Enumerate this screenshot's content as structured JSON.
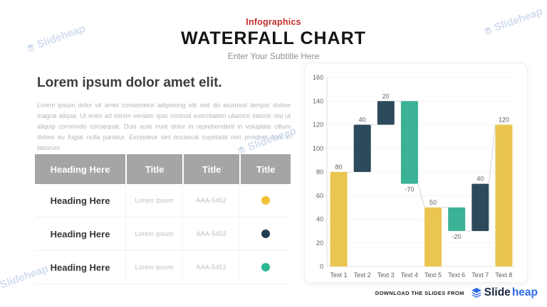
{
  "header": {
    "eyebrow": "Infographics",
    "title": "WATERFALL CHART",
    "subtitle": "Enter Your Subtitle Here"
  },
  "intro": {
    "heading": "Lorem ipsum dolor amet elit.",
    "body": "Lorem ipsum dolor sit amet consectetur adipiscing elit sed do eiusmod tempor dolore magna aliqua. Ut enim ad minim veniam quis nostrud exercitation ullamco laboris nisi ut aliquip commodo consequat. Duis aute irure dolor in reprehenderit in voluptate cillum dolore eu fugiat nulla pariatur. Excepteur sint occaecat cupidatat non proident sunt in laborum"
  },
  "table": {
    "headers": [
      "Heading Here",
      "Title",
      "Title",
      "Title"
    ],
    "rows": [
      {
        "heading": "Heading Here",
        "subtitle": "Lorem ipsum",
        "code": "AAA-5452",
        "dot_color": "#EFC233"
      },
      {
        "heading": "Heading Here",
        "subtitle": "Lorem ipsum",
        "code": "AAA-5452",
        "dot_color": "#223D50"
      },
      {
        "heading": "Heading Here",
        "subtitle": "Lorem ipsum",
        "code": "AAA-5452",
        "dot_color": "#2FB794"
      }
    ]
  },
  "chart_data": {
    "type": "bar",
    "subtype": "waterfall",
    "title": "",
    "xlabel": "",
    "ylabel": "",
    "categories": [
      "Text 1",
      "Text 2",
      "Text 3",
      "Text 4",
      "Text 5",
      "Text 6",
      "Text 7",
      "Text 8"
    ],
    "y_axis": {
      "min": 0,
      "max": 160,
      "step": 20
    },
    "grid": true,
    "legend": false,
    "bars": [
      {
        "category": "Text 1",
        "start": 0,
        "end": 80,
        "label": "80",
        "role": "total"
      },
      {
        "category": "Text 2",
        "start": 80,
        "end": 120,
        "label": "40",
        "role": "increase"
      },
      {
        "category": "Text 3",
        "start": 120,
        "end": 140,
        "label": "20",
        "role": "increase"
      },
      {
        "category": "Text 4",
        "start": 140,
        "end": 70,
        "label": "-70",
        "role": "decrease"
      },
      {
        "category": "Text 5",
        "start": 0,
        "end": 50,
        "label": "50",
        "role": "total"
      },
      {
        "category": "Text 6",
        "start": 50,
        "end": 30,
        "label": "-20",
        "role": "decrease"
      },
      {
        "category": "Text 7",
        "start": 30,
        "end": 70,
        "label": "40",
        "role": "increase"
      },
      {
        "category": "Text 8",
        "start": 0,
        "end": 120,
        "label": "120",
        "role": "total"
      }
    ],
    "connectors": [
      {
        "from": 0,
        "fromLevel": 80,
        "to": 1,
        "toLevel": 80
      },
      {
        "from": 1,
        "fromLevel": 120,
        "to": 2,
        "toLevel": 120
      },
      {
        "from": 2,
        "fromLevel": 140,
        "to": 3,
        "toLevel": 140
      },
      {
        "from": 3,
        "fromLevel": 70,
        "to": 4,
        "toLevel": 50
      },
      {
        "from": 4,
        "fromLevel": 50,
        "to": 5,
        "toLevel": 50
      },
      {
        "from": 5,
        "fromLevel": 30,
        "to": 6,
        "toLevel": 30
      },
      {
        "from": 6,
        "fromLevel": 70,
        "to": 7,
        "toLevel": 120
      }
    ]
  },
  "footer": {
    "download_label": "DOWNLOAD THE SLIDES FROM",
    "brand_first": "Slide",
    "brand_second": "heap"
  },
  "watermark": {
    "text": "Slideheap"
  },
  "colors": {
    "accent_red": "#C0302C",
    "brand_blue": "#2E6BE6",
    "brand_navy": "#15273E",
    "watermark_blue": "#C7D4EB",
    "table_header_bg": "#A5A5A5",
    "total": "#EAC54F",
    "increase": "#2C4A5B",
    "decrease": "#3BB295",
    "axis_text": "#5F5F5F",
    "gridline": "#F5F5F5",
    "connector": "#D4D4D4"
  }
}
